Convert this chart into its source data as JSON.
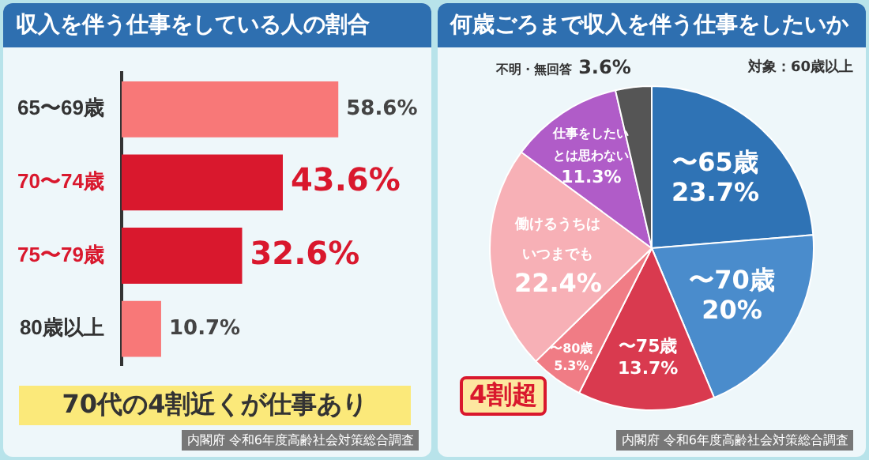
{
  "chart_data": [
    {
      "type": "bar",
      "orientation": "horizontal",
      "title": "収入を伴う仕事をしている人の割合",
      "categories": [
        "65〜69歳",
        "70〜74歳",
        "75〜79歳",
        "80歳以上"
      ],
      "values": [
        58.6,
        43.6,
        32.6,
        10.7
      ],
      "colors": [
        "#f87878",
        "#d9182d",
        "#d9182d",
        "#f87878"
      ],
      "value_labels": [
        "58.6%",
        "43.6%",
        "32.6%",
        "10.7%"
      ],
      "annotations": [
        "70代の4割近くが仕事あり",
        "内閣府 令和6年度高齢社会対策総合調査"
      ]
    },
    {
      "type": "pie",
      "title": "何歳ごろまで収入を伴う仕事をしたいか",
      "categories": [
        "〜65歳",
        "〜70歳",
        "〜75歳",
        "〜80歳",
        "働けるうちはいつまでも",
        "仕事をしたいとは思わない",
        "不明・無回答"
      ],
      "values": [
        23.7,
        20,
        13.7,
        5.3,
        22.4,
        11.3,
        3.6
      ],
      "colors": [
        "#2f73b5",
        "#4a8ccc",
        "#d93a4f",
        "#f07c85",
        "#f7b0b6",
        "#b05cc8",
        "#555555"
      ],
      "value_labels": [
        "23.7%",
        "20%",
        "13.7%",
        "5.3%",
        "22.4%",
        "11.3%",
        "3.6%"
      ],
      "annotations": [
        "対象：60歳以上",
        "4割超",
        "内閣府 令和6年度高齢社会対策総合調査"
      ]
    }
  ]
}
